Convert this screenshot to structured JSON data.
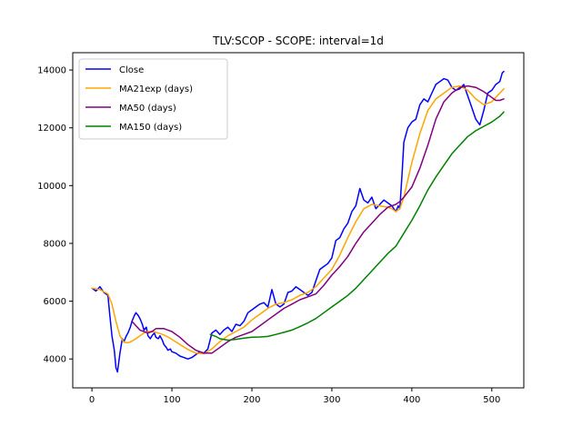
{
  "chart_data": {
    "type": "line",
    "title": "TLV:SCOP - SCOPE: interval=1d",
    "xlabel": "",
    "ylabel": "",
    "xlim": [
      -24,
      540
    ],
    "ylim": [
      3000,
      14600
    ],
    "x_ticks": [
      0,
      100,
      200,
      300,
      400,
      500
    ],
    "y_ticks": [
      4000,
      6000,
      8000,
      10000,
      12000,
      14000
    ],
    "grid": false,
    "legend_position": "top-left",
    "series": [
      {
        "name": "Close",
        "color": "#0000ff",
        "x": [
          0,
          5,
          10,
          15,
          20,
          22,
          25,
          28,
          30,
          32,
          35,
          38,
          40,
          43,
          45,
          48,
          50,
          53,
          55,
          58,
          60,
          63,
          65,
          68,
          70,
          73,
          75,
          78,
          80,
          83,
          85,
          88,
          90,
          93,
          95,
          98,
          100,
          105,
          110,
          115,
          120,
          125,
          130,
          135,
          140,
          145,
          150,
          155,
          160,
          165,
          170,
          175,
          180,
          185,
          190,
          195,
          200,
          205,
          210,
          215,
          220,
          225,
          230,
          235,
          240,
          245,
          250,
          255,
          260,
          265,
          270,
          275,
          280,
          285,
          290,
          295,
          300,
          305,
          310,
          315,
          320,
          325,
          330,
          335,
          340,
          345,
          350,
          355,
          360,
          365,
          370,
          375,
          380,
          383,
          385,
          388,
          390,
          393,
          395,
          400,
          405,
          410,
          415,
          420,
          425,
          430,
          435,
          440,
          445,
          450,
          455,
          460,
          465,
          470,
          475,
          480,
          485,
          490,
          495,
          500,
          505,
          510,
          513,
          515
        ],
        "values": [
          6450,
          6350,
          6500,
          6300,
          6200,
          5600,
          4800,
          4300,
          3700,
          3550,
          4200,
          4700,
          4600,
          4800,
          4900,
          5100,
          5300,
          5500,
          5600,
          5500,
          5400,
          5200,
          5000,
          5100,
          4800,
          4700,
          4800,
          4900,
          4750,
          4700,
          4800,
          4650,
          4500,
          4400,
          4300,
          4350,
          4250,
          4200,
          4100,
          4050,
          4000,
          4050,
          4150,
          4250,
          4200,
          4350,
          4900,
          5000,
          4850,
          5000,
          5100,
          4950,
          5200,
          5150,
          5300,
          5600,
          5700,
          5800,
          5900,
          5950,
          5800,
          6400,
          5900,
          5800,
          5900,
          6300,
          6350,
          6500,
          6400,
          6300,
          6200,
          6300,
          6700,
          7100,
          7200,
          7300,
          7500,
          8100,
          8200,
          8500,
          8700,
          9100,
          9300,
          9900,
          9500,
          9400,
          9600,
          9200,
          9350,
          9500,
          9400,
          9300,
          9100,
          9300,
          9200,
          10500,
          11500,
          11800,
          12000,
          12200,
          12300,
          12800,
          13000,
          12900,
          13200,
          13500,
          13600,
          13700,
          13650,
          13400,
          13300,
          13350,
          13500,
          13100,
          12700,
          12300,
          12100,
          12600,
          13200,
          13300,
          13500,
          13600,
          13900,
          13950
        ]
      },
      {
        "name": "MA21exp (days)",
        "color": "#ffa500",
        "x": [
          0,
          10,
          20,
          25,
          30,
          35,
          40,
          45,
          50,
          55,
          60,
          65,
          70,
          75,
          80,
          85,
          90,
          95,
          100,
          110,
          120,
          130,
          140,
          150,
          160,
          170,
          180,
          190,
          200,
          210,
          220,
          230,
          240,
          250,
          260,
          270,
          280,
          290,
          300,
          310,
          320,
          330,
          340,
          350,
          360,
          370,
          375,
          380,
          385,
          390,
          395,
          400,
          410,
          420,
          430,
          440,
          450,
          460,
          470,
          480,
          490,
          500,
          505,
          510,
          515
        ],
        "values": [
          6450,
          6400,
          6250,
          5900,
          5300,
          4800,
          4580,
          4560,
          4620,
          4700,
          4800,
          4900,
          4950,
          4950,
          4920,
          4880,
          4830,
          4760,
          4680,
          4500,
          4330,
          4200,
          4180,
          4350,
          4600,
          4800,
          4950,
          5100,
          5350,
          5550,
          5750,
          5900,
          5950,
          6050,
          6200,
          6300,
          6500,
          6800,
          7100,
          7600,
          8200,
          8750,
          9200,
          9350,
          9300,
          9250,
          9200,
          9100,
          9200,
          9600,
          10200,
          10800,
          11800,
          12600,
          13000,
          13200,
          13400,
          13450,
          13300,
          13000,
          12800,
          12900,
          13050,
          13200,
          13350
        ]
      },
      {
        "name": "MA50 (days)",
        "color": "#800080",
        "x": [
          50,
          55,
          60,
          65,
          70,
          75,
          80,
          85,
          90,
          95,
          100,
          110,
          120,
          130,
          140,
          150,
          160,
          170,
          180,
          190,
          200,
          210,
          220,
          230,
          240,
          250,
          260,
          270,
          280,
          290,
          300,
          310,
          320,
          330,
          340,
          350,
          360,
          370,
          380,
          385,
          390,
          400,
          410,
          420,
          430,
          440,
          450,
          460,
          470,
          480,
          490,
          500,
          505,
          510,
          515
        ],
        "values": [
          5300,
          5150,
          5000,
          4950,
          4900,
          4950,
          5050,
          5050,
          5050,
          5000,
          4950,
          4750,
          4500,
          4300,
          4200,
          4200,
          4400,
          4600,
          4750,
          4850,
          4950,
          5150,
          5350,
          5550,
          5750,
          5900,
          6050,
          6150,
          6250,
          6550,
          6900,
          7200,
          7550,
          8000,
          8400,
          8700,
          9000,
          9250,
          9350,
          9450,
          9600,
          9950,
          10600,
          11400,
          12300,
          12900,
          13200,
          13400,
          13450,
          13400,
          13250,
          13050,
          12950,
          12950,
          13000
        ]
      },
      {
        "name": "MA150 (days)",
        "color": "#008000",
        "x": [
          148,
          155,
          160,
          170,
          180,
          190,
          200,
          210,
          220,
          230,
          240,
          250,
          260,
          270,
          280,
          290,
          300,
          310,
          320,
          330,
          340,
          350,
          360,
          370,
          380,
          390,
          400,
          410,
          420,
          430,
          440,
          450,
          460,
          470,
          480,
          490,
          500,
          510,
          515
        ],
        "values": [
          4850,
          4780,
          4700,
          4650,
          4680,
          4720,
          4750,
          4760,
          4780,
          4850,
          4920,
          5000,
          5120,
          5250,
          5400,
          5600,
          5800,
          6000,
          6200,
          6450,
          6750,
          7050,
          7350,
          7650,
          7900,
          8350,
          8800,
          9300,
          9850,
          10300,
          10700,
          11100,
          11400,
          11700,
          11900,
          12050,
          12200,
          12400,
          12550
        ]
      }
    ]
  }
}
